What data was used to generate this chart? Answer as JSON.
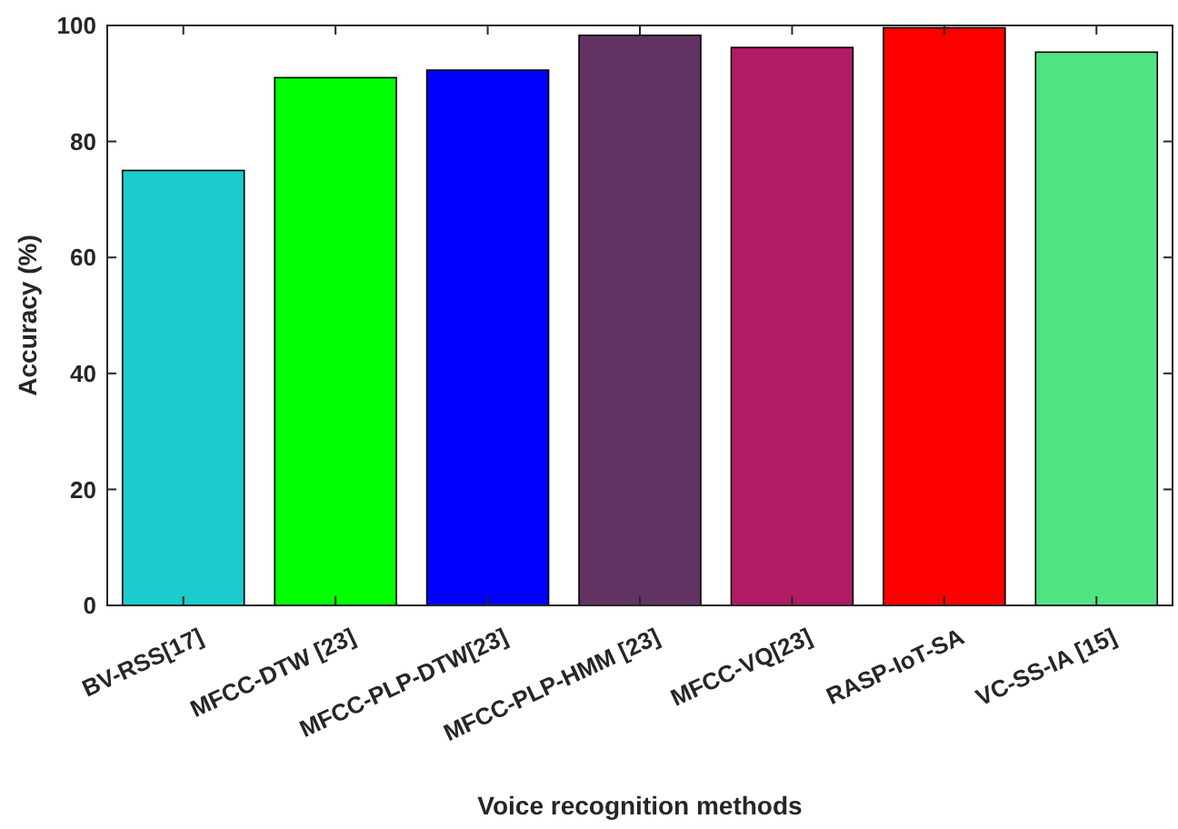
{
  "chart_data": {
    "type": "bar",
    "xlabel": "Voice recognition methods",
    "ylabel": "Accuracy (%)",
    "categories": [
      "BV-RSS[17]",
      "MFCC-DTW [23]",
      "MFCC-PLP-DTW[23]",
      "MFCC-PLP-HMM [23]",
      "MFCC-VQ[23]",
      "RASP-IoT-SA",
      "VC-SS-IA [15]"
    ],
    "values": [
      75,
      91,
      92.3,
      98.3,
      96.2,
      99.6,
      95.4
    ],
    "colors": [
      "#1ccbcb",
      "#00ff00",
      "#0000ff",
      "#623262",
      "#b01b63",
      "#ff0000",
      "#50e485"
    ],
    "ylim": [
      0,
      100
    ],
    "yticks": [
      0,
      20,
      40,
      60,
      80,
      100
    ],
    "grid": false
  }
}
